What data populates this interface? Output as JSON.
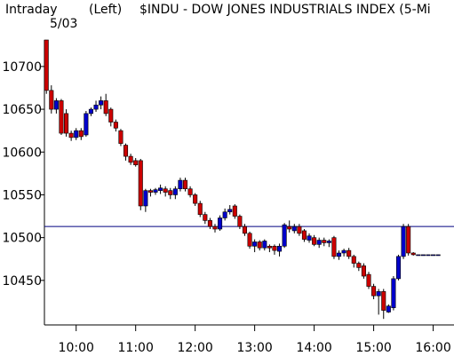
{
  "chart_data": {
    "type": "candlestick",
    "title_left": "Intraday",
    "title_axis": "(Left)",
    "title": "$INDU - DOW JONES INDUSTRIALS INDEX  (5-Mi",
    "date": "5/03",
    "x": [
      "09:30",
      "09:35",
      "09:40",
      "09:45",
      "09:50",
      "09:55",
      "10:00",
      "10:05",
      "10:10",
      "10:15",
      "10:20",
      "10:25",
      "10:30",
      "10:35",
      "10:40",
      "10:45",
      "10:50",
      "10:55",
      "11:00",
      "11:05",
      "11:10",
      "11:15",
      "11:20",
      "11:25",
      "11:30",
      "11:35",
      "11:40",
      "11:45",
      "11:50",
      "11:55",
      "12:00",
      "12:05",
      "12:10",
      "12:15",
      "12:20",
      "12:25",
      "12:30",
      "12:35",
      "12:40",
      "12:45",
      "12:50",
      "12:55",
      "13:00",
      "13:05",
      "13:10",
      "13:15",
      "13:20",
      "13:25",
      "13:30",
      "13:35",
      "13:40",
      "13:45",
      "13:50",
      "13:55",
      "14:00",
      "14:05",
      "14:10",
      "14:15",
      "14:20",
      "14:25",
      "14:30",
      "14:35",
      "14:40",
      "14:45",
      "14:50",
      "14:55",
      "15:00",
      "15:05",
      "15:10",
      "15:15",
      "15:20",
      "15:25",
      "15:30",
      "15:35",
      "15:40",
      "15:45",
      "15:50",
      "15:55",
      "16:00",
      "16:05"
    ],
    "open": [
      10731,
      10672,
      10650,
      10660,
      10645,
      10622,
      10617,
      10625,
      10620,
      10645,
      10650,
      10655,
      10660,
      10650,
      10635,
      10625,
      10608,
      10595,
      10590,
      10590,
      10537,
      10555,
      10553,
      10555,
      10557,
      10555,
      10550,
      10557,
      10567,
      10557,
      10550,
      10540,
      10527,
      10520,
      10513,
      10510,
      10523,
      10530,
      10537,
      10525,
      10513,
      10505,
      10490,
      10495,
      10488,
      10490,
      10490,
      10484,
      10490,
      10513,
      10508,
      10513,
      10508,
      10497,
      10500,
      10492,
      10497,
      10494,
      10500,
      10478,
      10482,
      10485,
      10478,
      10470,
      10467,
      10457,
      10443,
      10432,
      10437,
      10413,
      10418,
      10452,
      10478,
      10513,
      10482,
      10480,
      10480,
      10480,
      10480,
      10480
    ],
    "high": [
      10731,
      10678,
      10663,
      10662,
      10650,
      10625,
      10628,
      10628,
      10648,
      10652,
      10660,
      10665,
      10668,
      10652,
      10638,
      10627,
      10610,
      10598,
      10593,
      10592,
      10557,
      10557,
      10558,
      10562,
      10560,
      10558,
      10560,
      10570,
      10570,
      10560,
      10552,
      10543,
      10530,
      10523,
      10516,
      10526,
      10534,
      10538,
      10539,
      10527,
      10516,
      10507,
      10498,
      10497,
      10498,
      10492,
      10492,
      10493,
      10517,
      10520,
      10516,
      10516,
      10510,
      10505,
      10503,
      10500,
      10500,
      10498,
      10502,
      10485,
      10487,
      10488,
      10480,
      10472,
      10470,
      10460,
      10446,
      10440,
      10440,
      10422,
      10455,
      10480,
      10516,
      10516,
      10483,
      10480,
      10480,
      10480,
      10480,
      10480
    ],
    "low": [
      10668,
      10645,
      10645,
      10620,
      10618,
      10613,
      10614,
      10614,
      10618,
      10642,
      10647,
      10650,
      10642,
      10630,
      10624,
      10607,
      10590,
      10585,
      10583,
      10532,
      10530,
      10548,
      10550,
      10551,
      10548,
      10545,
      10545,
      10554,
      10554,
      10547,
      10537,
      10524,
      10516,
      10510,
      10506,
      10508,
      10520,
      10527,
      10522,
      10510,
      10502,
      10487,
      10483,
      10485,
      10485,
      10483,
      10480,
      10478,
      10488,
      10506,
      10505,
      10502,
      10495,
      10494,
      10490,
      10488,
      10490,
      10489,
      10475,
      10474,
      10478,
      10475,
      10465,
      10461,
      10452,
      10440,
      10428,
      10410,
      10405,
      10412,
      10415,
      10450,
      10475,
      10479,
      10479,
      10480,
      10480,
      10480,
      10480,
      10480
    ],
    "close": [
      10672,
      10650,
      10660,
      10622,
      10622,
      10617,
      10625,
      10618,
      10645,
      10650,
      10655,
      10660,
      10645,
      10635,
      10628,
      10610,
      10595,
      10588,
      10585,
      10537,
      10555,
      10553,
      10556,
      10558,
      10553,
      10550,
      10557,
      10567,
      10557,
      10550,
      10540,
      10527,
      10520,
      10513,
      10510,
      10523,
      10530,
      10533,
      10525,
      10513,
      10505,
      10490,
      10495,
      10488,
      10496,
      10488,
      10485,
      10490,
      10515,
      10510,
      10513,
      10505,
      10498,
      10502,
      10492,
      10497,
      10494,
      10496,
      10478,
      10482,
      10485,
      10478,
      10470,
      10465,
      10455,
      10443,
      10432,
      10437,
      10415,
      10420,
      10452,
      10478,
      10513,
      10482,
      10480,
      10480,
      10480,
      10480,
      10480,
      10480
    ],
    "up_color": "#0000cc",
    "down_color": "#cc0000",
    "reference_line": 10513,
    "reference_color": "#000080",
    "xlim": [
      "09:28",
      "16:21"
    ],
    "xticks": [
      "10:00",
      "11:00",
      "12:00",
      "13:00",
      "14:00",
      "15:00",
      "16:00"
    ],
    "ylim": [
      10399,
      10731
    ],
    "yticks": [
      10450,
      10500,
      10550,
      10600,
      10650,
      10700
    ]
  }
}
